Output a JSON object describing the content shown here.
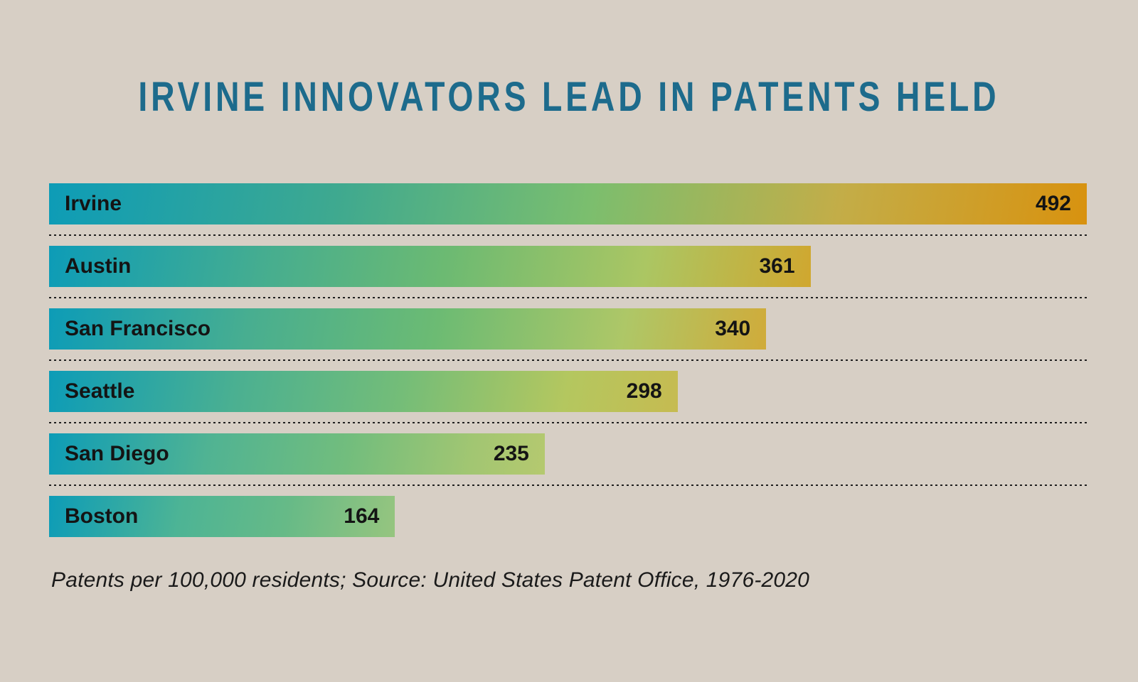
{
  "colors": {
    "background": "#d7cfc5",
    "title": "#1d6b8c",
    "bar_text": "#141414",
    "separator": "#1e1e1e",
    "caption_text": "#1a1a1a"
  },
  "chart_data": {
    "type": "bar",
    "orientation": "horizontal",
    "title": "IRVINE INNOVATORS LEAD IN PATENTS HELD",
    "caption": "Patents per 100,000 residents; Source: United States Patent Office, 1976-2020",
    "xlabel": "",
    "ylabel": "",
    "xlim": [
      0,
      492
    ],
    "grid": false,
    "legend": false,
    "value_labels": "inside-right",
    "category_labels": "inside-left",
    "categories": [
      "Irvine",
      "Austin",
      "San Francisco",
      "Seattle",
      "San Diego",
      "Boston"
    ],
    "values": [
      492,
      361,
      340,
      298,
      235,
      164
    ],
    "max_value": 492,
    "gradient_angle_deg": 100,
    "bars": [
      {
        "label": "Irvine",
        "value": 492,
        "gradient": [
          {
            "c": "#0d9cb7",
            "p": 0
          },
          {
            "c": "#3fa98f",
            "p": 28
          },
          {
            "c": "#7bbe6e",
            "p": 52
          },
          {
            "c": "#c3ad48",
            "p": 76
          },
          {
            "c": "#d8920f",
            "p": 100
          }
        ]
      },
      {
        "label": "Austin",
        "value": 361,
        "gradient": [
          {
            "c": "#0d9cb7",
            "p": 0
          },
          {
            "c": "#45ad90",
            "p": 28
          },
          {
            "c": "#6cba72",
            "p": 52
          },
          {
            "c": "#abc663",
            "p": 78
          },
          {
            "c": "#d0a72f",
            "p": 100
          }
        ]
      },
      {
        "label": "San Francisco",
        "value": 340,
        "gradient": [
          {
            "c": "#0d9cb7",
            "p": 0
          },
          {
            "c": "#48ae90",
            "p": 28
          },
          {
            "c": "#6cbb73",
            "p": 54
          },
          {
            "c": "#aec767",
            "p": 80
          },
          {
            "c": "#d0ab3a",
            "p": 100
          }
        ]
      },
      {
        "label": "Seattle",
        "value": 298,
        "gradient": [
          {
            "c": "#0d9cb7",
            "p": 0
          },
          {
            "c": "#4bb091",
            "p": 30
          },
          {
            "c": "#74bd78",
            "p": 56
          },
          {
            "c": "#b4c75f",
            "p": 82
          },
          {
            "c": "#c6bb51",
            "p": 100
          }
        ]
      },
      {
        "label": "San Diego",
        "value": 235,
        "gradient": [
          {
            "c": "#0d9cb7",
            "p": 0
          },
          {
            "c": "#50b393",
            "p": 32
          },
          {
            "c": "#72bd7d",
            "p": 60
          },
          {
            "c": "#a2c672",
            "p": 85
          },
          {
            "c": "#b5c96f",
            "p": 100
          }
        ]
      },
      {
        "label": "Boston",
        "value": 164,
        "gradient": [
          {
            "c": "#0d9cb7",
            "p": 0
          },
          {
            "c": "#4db495",
            "p": 38
          },
          {
            "c": "#66ba87",
            "p": 68
          },
          {
            "c": "#96c57f",
            "p": 100
          }
        ]
      }
    ]
  }
}
